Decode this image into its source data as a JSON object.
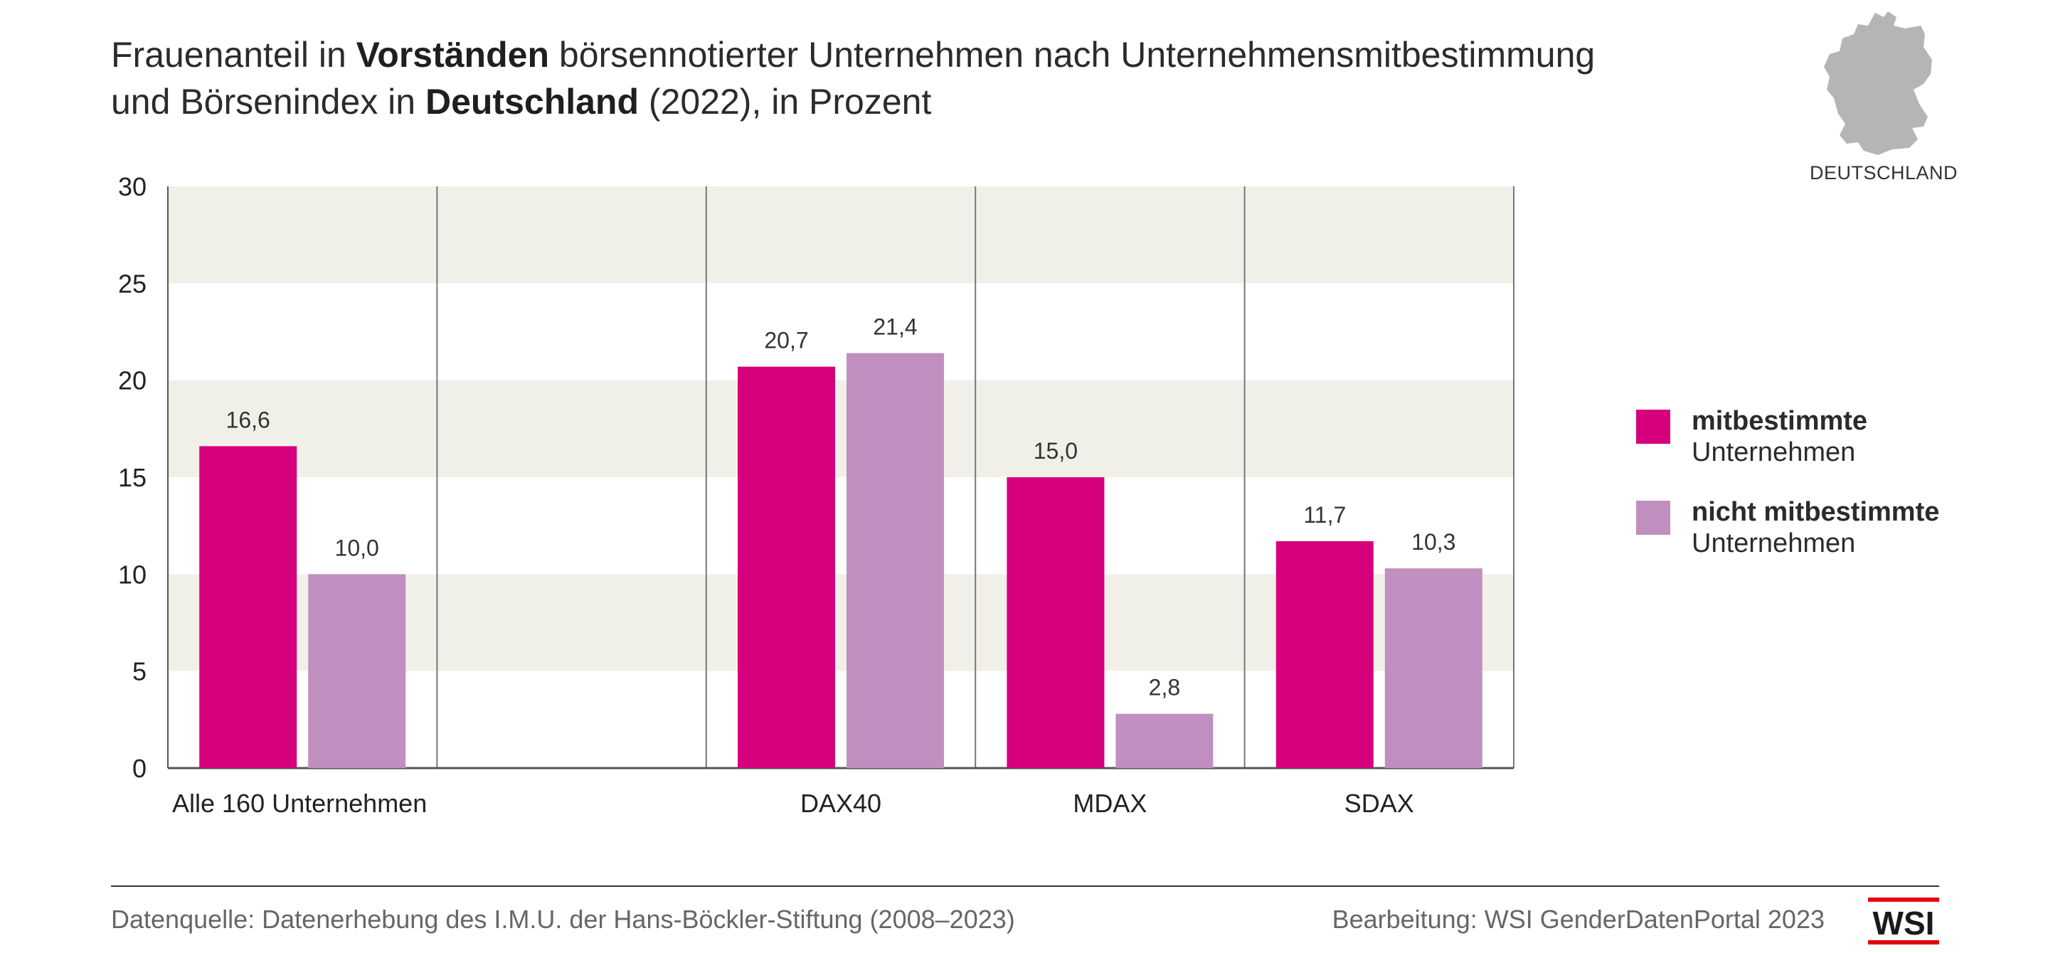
{
  "title": {
    "line1_pre": "Frauenanteil in ",
    "line1_bold": "Vorständen",
    "line1_post": " börsennotierter Unternehmen nach Unternehmensmitbestimmung",
    "line2_pre": "und Börsenindex in ",
    "line2_bold": "Deutschland",
    "line2_post": " (2022), in Prozent"
  },
  "map": {
    "label": "DEUTSCHLAND",
    "icon": "germany-map-icon"
  },
  "legend": [
    {
      "bold": "mitbestimmte",
      "light": "Unternehmen",
      "color": "#d6007d"
    },
    {
      "bold": "nicht mitbestimmte",
      "light": "Unternehmen",
      "color": "#c18fbf"
    }
  ],
  "footer": {
    "source": "Datenquelle: Datenerhebung des I.M.U. der Hans-Böckler-Stiftung (2008–2023)",
    "credit": "Bearbeitung: WSI GenderDatenPortal 2023",
    "logo_text": "WSI"
  },
  "chart_data": {
    "type": "bar",
    "categories": [
      "Alle 160 Unternehmen",
      "",
      "DAX40",
      "MDAX",
      "SDAX"
    ],
    "series": [
      {
        "name": "mitbestimmte Unternehmen",
        "values": [
          16.6,
          null,
          20.7,
          15.0,
          11.7
        ],
        "labels": [
          "16,6",
          "",
          "20,7",
          "15,0",
          "11,7"
        ],
        "color": "#d6007d"
      },
      {
        "name": "nicht mitbestimmte Unternehmen",
        "values": [
          10.0,
          null,
          21.4,
          2.8,
          10.3
        ],
        "labels": [
          "10,0",
          "",
          "21,4",
          "2,8",
          "10,3"
        ],
        "color": "#c18fbf"
      }
    ],
    "ylim": [
      0,
      30
    ],
    "yticks": [
      0,
      5,
      10,
      15,
      20,
      25,
      30
    ],
    "band_color": "#f1f0e8",
    "grid": false,
    "legend_position": "right"
  }
}
